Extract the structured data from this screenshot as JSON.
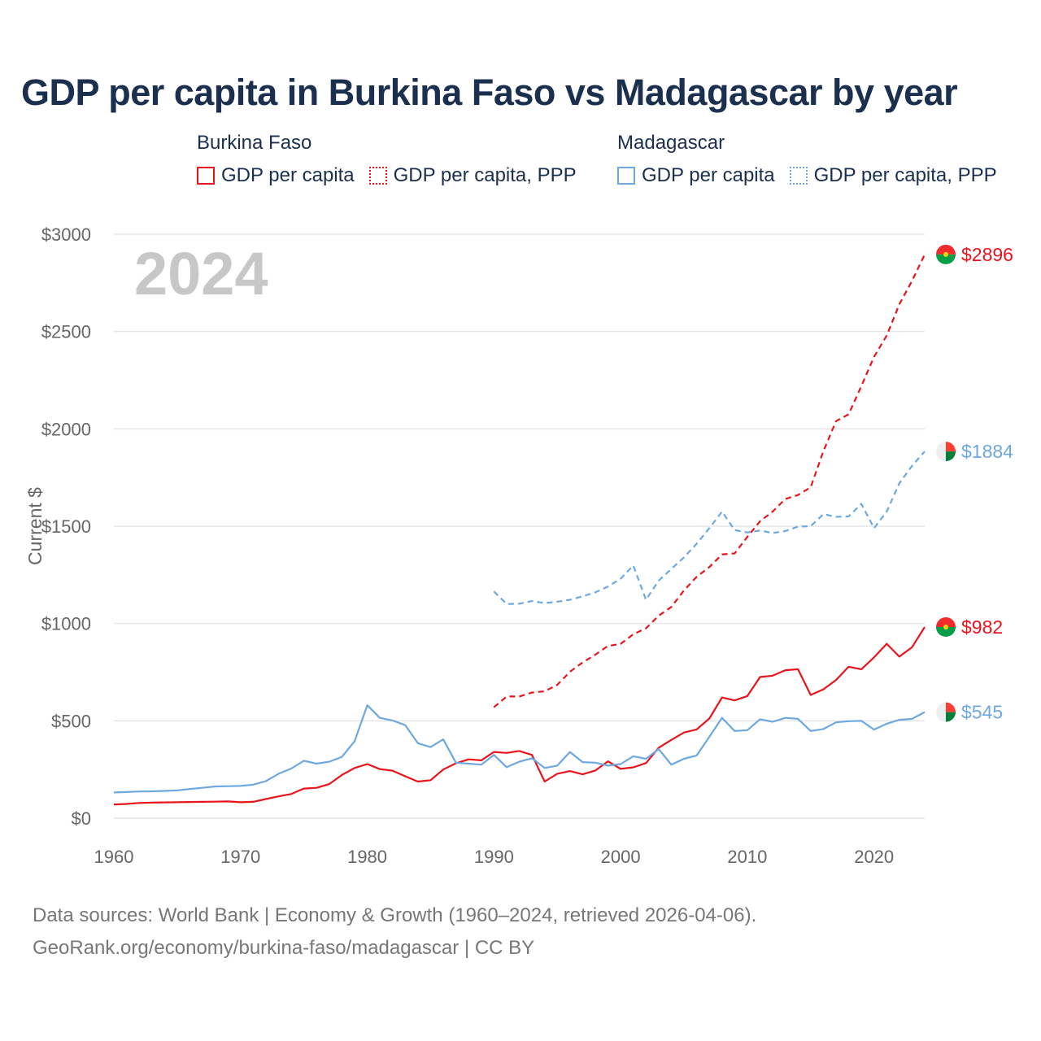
{
  "chart_data": {
    "type": "line",
    "title": "GDP per capita in Burkina Faso vs Madagascar by year",
    "year_label": "2024",
    "ylabel": "Current $",
    "xlabel": "",
    "xlim": [
      1960,
      2024
    ],
    "ylim": [
      0,
      3000
    ],
    "x_ticks": [
      1960,
      1970,
      1980,
      1990,
      2000,
      2010,
      2020
    ],
    "x_tick_labels": [
      "1960",
      "1970",
      "1980",
      "1990",
      "2000",
      "2010",
      "2020"
    ],
    "y_ticks": [
      0,
      500,
      1000,
      1500,
      2000,
      2500,
      3000
    ],
    "y_tick_labels": [
      "$0",
      "$500",
      "$1000",
      "$1500",
      "$2000",
      "$2500",
      "$3000"
    ],
    "grid": true,
    "legend": {
      "groups": [
        {
          "name": "Burkina Faso",
          "items": [
            "GDP per capita",
            "GDP per capita, PPP"
          ]
        },
        {
          "name": "Madagascar",
          "items": [
            "GDP per capita",
            "GDP per capita, PPP"
          ]
        }
      ]
    },
    "series": [
      {
        "name": "Burkina Faso GDP per capita",
        "country": "Burkina Faso",
        "color": "#e8141c",
        "style": "solid",
        "end_label": "$982",
        "x": [
          1960,
          1961,
          1962,
          1963,
          1964,
          1965,
          1966,
          1967,
          1968,
          1969,
          1970,
          1971,
          1972,
          1973,
          1974,
          1975,
          1976,
          1977,
          1978,
          1979,
          1980,
          1981,
          1982,
          1983,
          1984,
          1985,
          1986,
          1987,
          1988,
          1989,
          1990,
          1991,
          1992,
          1993,
          1994,
          1995,
          1996,
          1997,
          1998,
          1999,
          2000,
          2001,
          2002,
          2003,
          2004,
          2005,
          2006,
          2007,
          2008,
          2009,
          2010,
          2011,
          2012,
          2013,
          2014,
          2015,
          2016,
          2017,
          2018,
          2019,
          2020,
          2021,
          2022,
          2023,
          2024
        ],
        "values": [
          70,
          73,
          78,
          80,
          81,
          82,
          83,
          84,
          85,
          86,
          82,
          84,
          98,
          112,
          124,
          152,
          156,
          175,
          222,
          258,
          278,
          252,
          244,
          215,
          188,
          195,
          250,
          282,
          302,
          297,
          340,
          335,
          345,
          325,
          188,
          228,
          242,
          225,
          245,
          292,
          253,
          261,
          283,
          362,
          402,
          440,
          456,
          512,
          620,
          605,
          627,
          725,
          732,
          760,
          765,
          633,
          662,
          710,
          778,
          765,
          826,
          896,
          830,
          878,
          982
        ]
      },
      {
        "name": "Burkina Faso GDP per capita, PPP",
        "country": "Burkina Faso",
        "color": "#e8141c",
        "style": "dashed",
        "end_label": "$2896",
        "x": [
          1990,
          1991,
          1992,
          1993,
          1994,
          1995,
          1996,
          1997,
          1998,
          1999,
          2000,
          2001,
          2002,
          2003,
          2004,
          2005,
          2006,
          2007,
          2008,
          2009,
          2010,
          2011,
          2012,
          2013,
          2014,
          2015,
          2016,
          2017,
          2018,
          2019,
          2020,
          2021,
          2022,
          2023,
          2024
        ],
        "values": [
          570,
          625,
          625,
          645,
          652,
          685,
          752,
          800,
          840,
          885,
          895,
          945,
          975,
          1040,
          1085,
          1170,
          1240,
          1290,
          1355,
          1360,
          1445,
          1525,
          1575,
          1640,
          1660,
          1700,
          1885,
          2040,
          2075,
          2220,
          2370,
          2480,
          2640,
          2760,
          2896
        ]
      },
      {
        "name": "Madagascar GDP per capita",
        "country": "Madagascar",
        "color": "#6ea8e0",
        "style": "solid",
        "end_label": "$545",
        "x": [
          1960,
          1961,
          1962,
          1963,
          1964,
          1965,
          1966,
          1967,
          1968,
          1969,
          1970,
          1971,
          1972,
          1973,
          1974,
          1975,
          1976,
          1977,
          1978,
          1979,
          1980,
          1981,
          1982,
          1983,
          1984,
          1985,
          1986,
          1987,
          1988,
          1989,
          1990,
          1991,
          1992,
          1993,
          1994,
          1995,
          1996,
          1997,
          1998,
          1999,
          2000,
          2001,
          2002,
          2003,
          2004,
          2005,
          2006,
          2007,
          2008,
          2009,
          2010,
          2011,
          2012,
          2013,
          2014,
          2015,
          2016,
          2017,
          2018,
          2019,
          2020,
          2021,
          2022,
          2023,
          2024
        ],
        "values": [
          132,
          134,
          137,
          138,
          140,
          143,
          150,
          156,
          163,
          164,
          166,
          172,
          190,
          228,
          255,
          295,
          280,
          290,
          315,
          395,
          580,
          515,
          502,
          478,
          385,
          365,
          405,
          285,
          280,
          275,
          325,
          262,
          290,
          308,
          258,
          270,
          340,
          288,
          285,
          270,
          278,
          318,
          305,
          355,
          275,
          305,
          322,
          418,
          515,
          448,
          452,
          508,
          495,
          515,
          510,
          448,
          458,
          492,
          498,
          500,
          455,
          485,
          505,
          510,
          545
        ]
      },
      {
        "name": "Madagascar GDP per capita, PPP",
        "country": "Madagascar",
        "color": "#6ea8e0",
        "style": "dashed",
        "end_label": "$1884",
        "x": [
          1990,
          1991,
          1992,
          1993,
          1994,
          1995,
          1996,
          1997,
          1998,
          1999,
          2000,
          2001,
          2002,
          2003,
          2004,
          2005,
          2006,
          2007,
          2008,
          2009,
          2010,
          2011,
          2012,
          2013,
          2014,
          2015,
          2016,
          2017,
          2018,
          2019,
          2020,
          2021,
          2022,
          2023,
          2024
        ],
        "values": [
          1165,
          1100,
          1102,
          1115,
          1105,
          1112,
          1122,
          1140,
          1160,
          1190,
          1230,
          1298,
          1122,
          1220,
          1280,
          1340,
          1410,
          1490,
          1575,
          1480,
          1468,
          1478,
          1465,
          1475,
          1498,
          1500,
          1562,
          1548,
          1550,
          1615,
          1490,
          1575,
          1720,
          1810,
          1884
        ]
      }
    ]
  },
  "legend_labels": {
    "bf_group": "Burkina Faso",
    "bf_gdp": "GDP per capita",
    "bf_ppp": "GDP per capita, PPP",
    "mg_group": "Madagascar",
    "mg_gdp": "GDP per capita",
    "mg_ppp": "GDP per capita, PPP"
  },
  "colors": {
    "burkina_faso": "#e8141c",
    "madagascar": "#6ea8e0",
    "title": "#1b2f4e",
    "year_watermark": "#c7c7c7",
    "grid": "#e6e6e6"
  },
  "flags": {
    "burkina_faso": {
      "top": "#ef2b2d",
      "bottom": "#009e49",
      "star": "#fcd116"
    },
    "madagascar": {
      "left": "#ffffff",
      "top": "#fc3d32",
      "bottom": "#007e3a"
    }
  },
  "footer": {
    "line1": "Data sources: World Bank | Economy & Growth (1960–2024, retrieved 2026-04-06).",
    "line2": "GeoRank.org/economy/burkina-faso/madagascar | CC BY"
  }
}
